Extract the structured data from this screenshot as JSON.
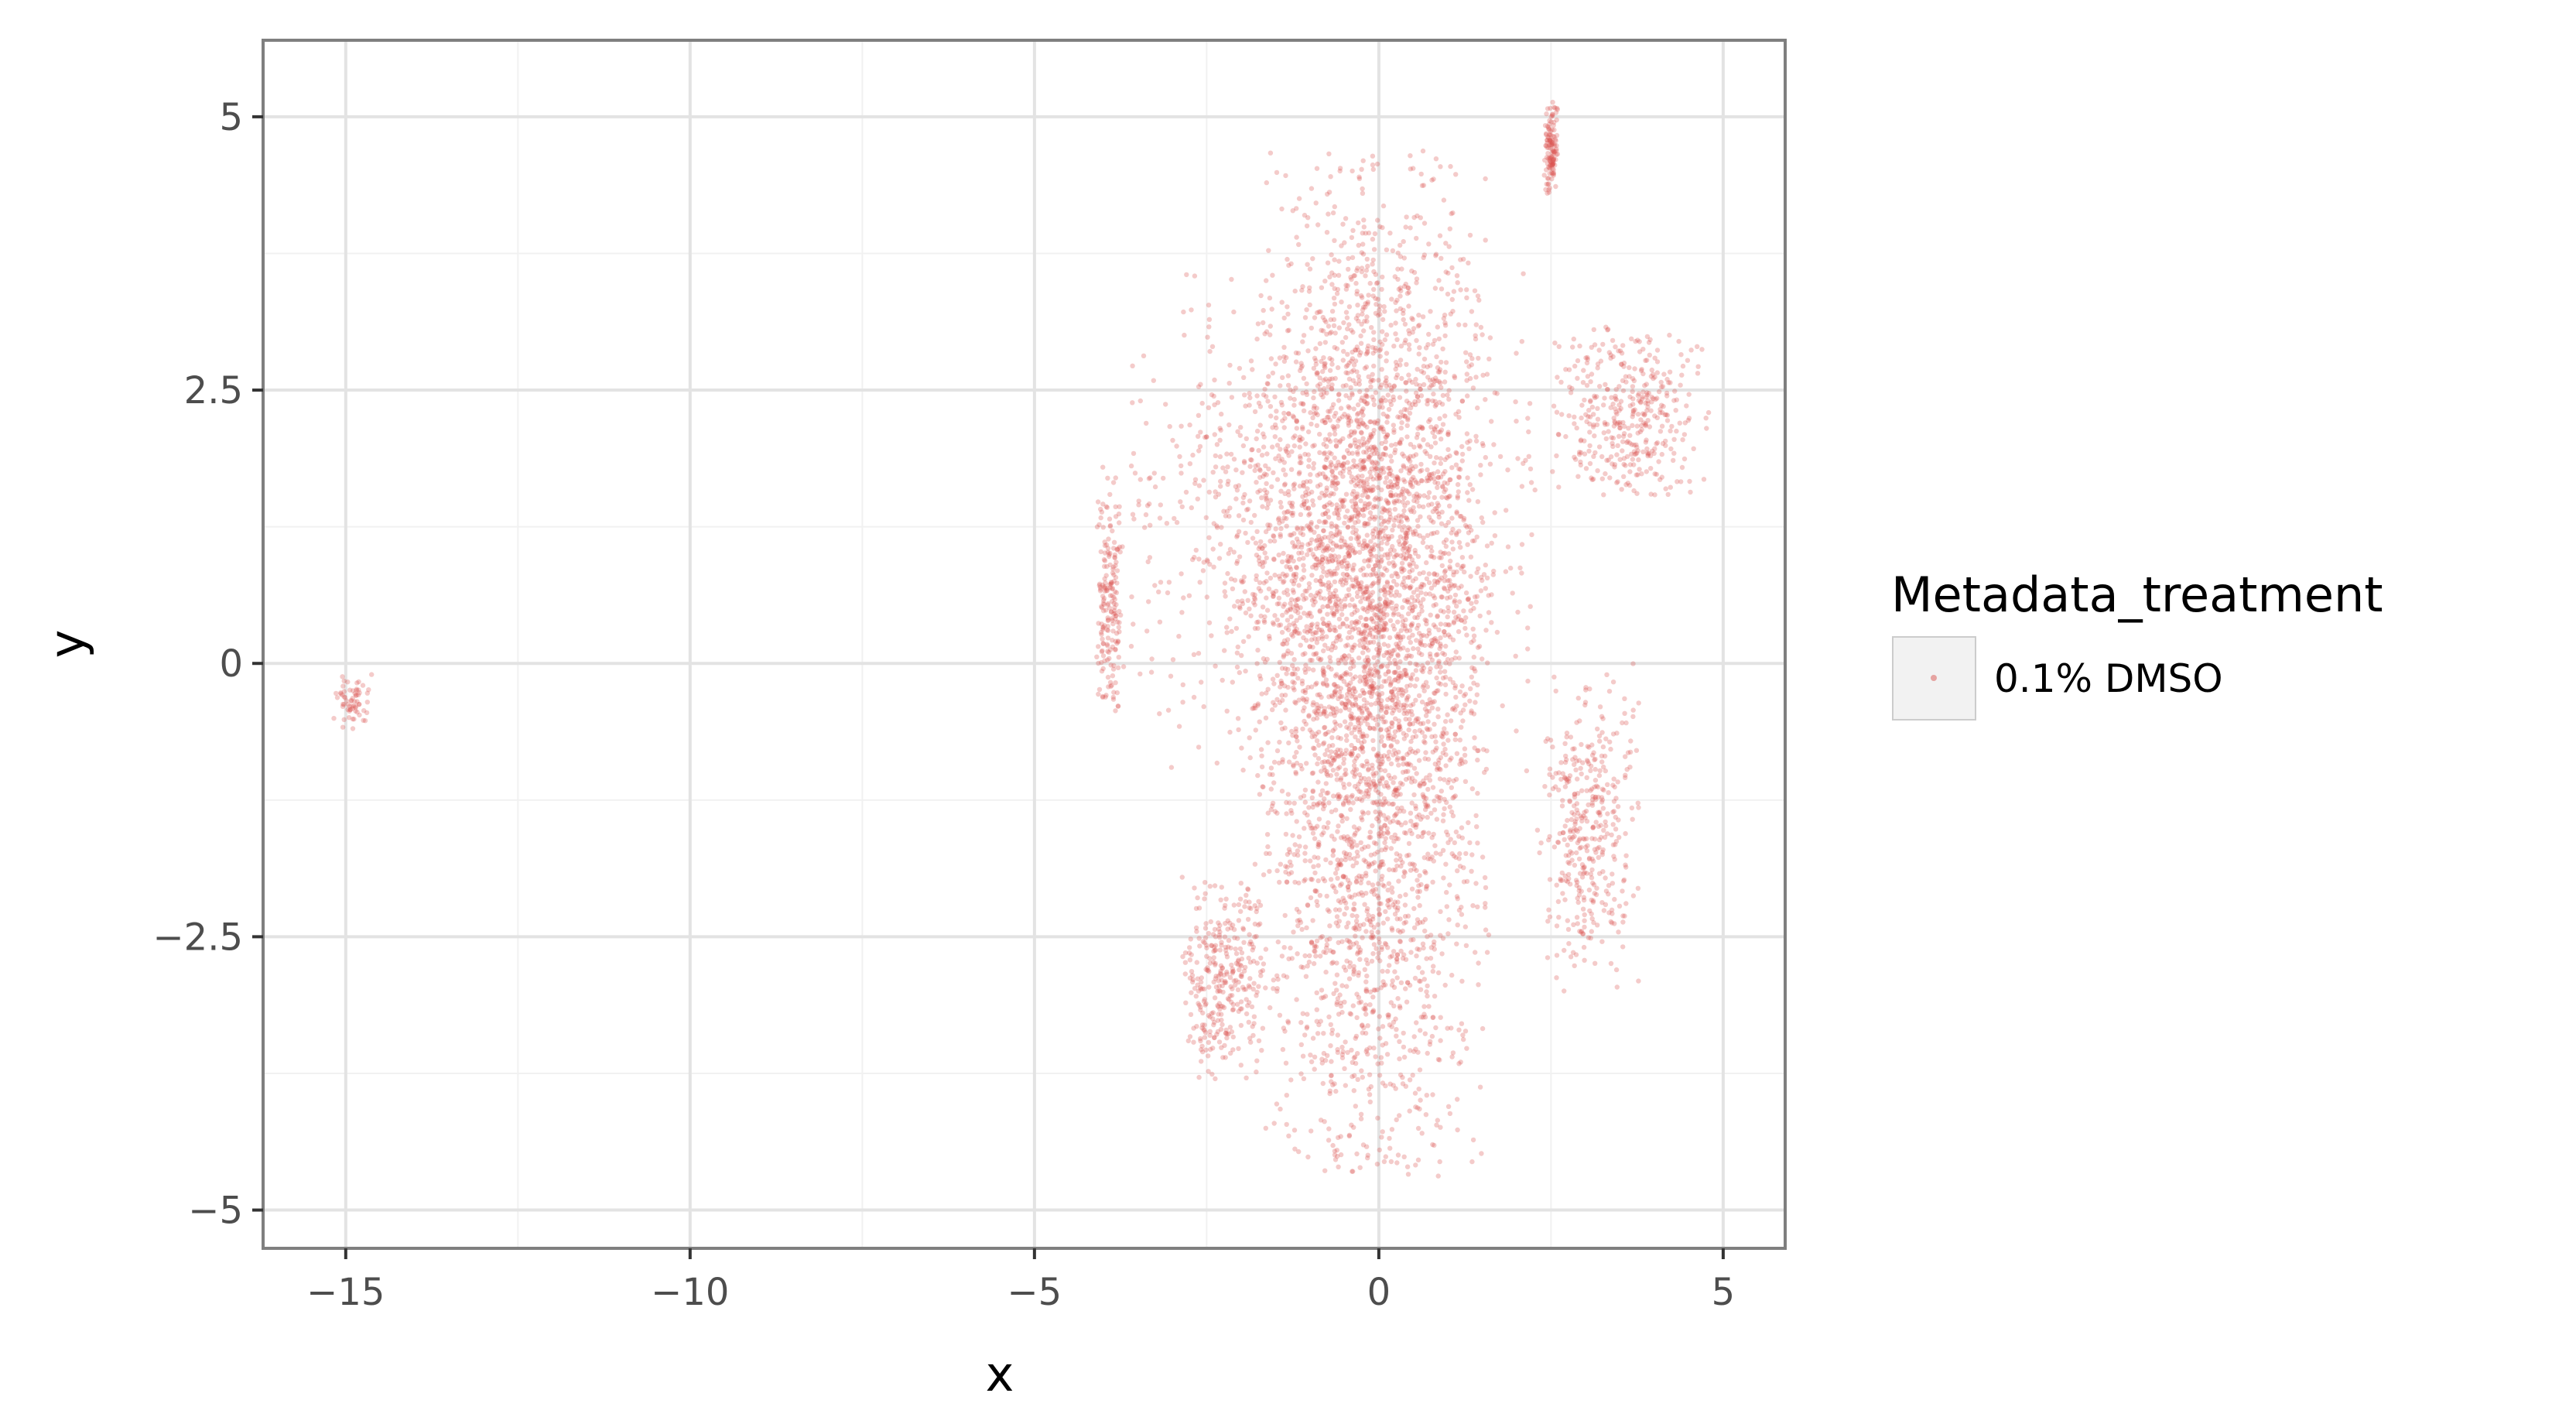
{
  "chart_data": {
    "type": "scatter",
    "title": "",
    "xlabel": "x",
    "ylabel": "y",
    "xlim": [
      -16.2,
      5.9
    ],
    "ylim": [
      -5.35,
      5.7
    ],
    "x_ticks": [
      -15,
      -10,
      -5,
      0,
      5
    ],
    "x_tick_labels": [
      "−15",
      "−10",
      "−5",
      "0",
      "5"
    ],
    "y_ticks": [
      5,
      2.5,
      0,
      -2.5,
      -5
    ],
    "y_tick_labels": [
      "5",
      "2.5",
      "0",
      "−2.5",
      "−5"
    ],
    "grid": true,
    "legend_position": "right",
    "legend": {
      "title": "Metadata_treatment",
      "entries": [
        "0.1% DMSO"
      ]
    },
    "series": [
      {
        "name": "0.1% DMSO",
        "color": "#d9534f",
        "opacity": 0.3,
        "approx_point_count": 6500,
        "regions": [
          {
            "x_range": [
              -1.8,
              1.6
            ],
            "y_range": [
              -4.7,
              4.7
            ],
            "weight": 0.55
          },
          {
            "x_range": [
              -3.6,
              2.3
            ],
            "y_range": [
              -1.0,
              3.6
            ],
            "weight": 0.2
          },
          {
            "x_range": [
              -2.9,
              -1.6
            ],
            "y_range": [
              -3.8,
              -1.9
            ],
            "weight": 0.05
          },
          {
            "x_range": [
              2.3,
              3.8
            ],
            "y_range": [
              -3.0,
              0.0
            ],
            "weight": 0.06
          },
          {
            "x_range": [
              2.5,
              4.8
            ],
            "y_range": [
              1.5,
              3.1
            ],
            "weight": 0.06
          },
          {
            "x_range": [
              -4.1,
              -3.7
            ],
            "y_range": [
              -0.5,
              1.8
            ],
            "weight": 0.03
          },
          {
            "x_range": [
              2.4,
              2.6
            ],
            "y_range": [
              4.3,
              5.2
            ],
            "weight": 0.02
          },
          {
            "x_range": [
              -15.2,
              -14.6
            ],
            "y_range": [
              -0.6,
              -0.1
            ],
            "weight": 0.01
          }
        ]
      }
    ]
  }
}
